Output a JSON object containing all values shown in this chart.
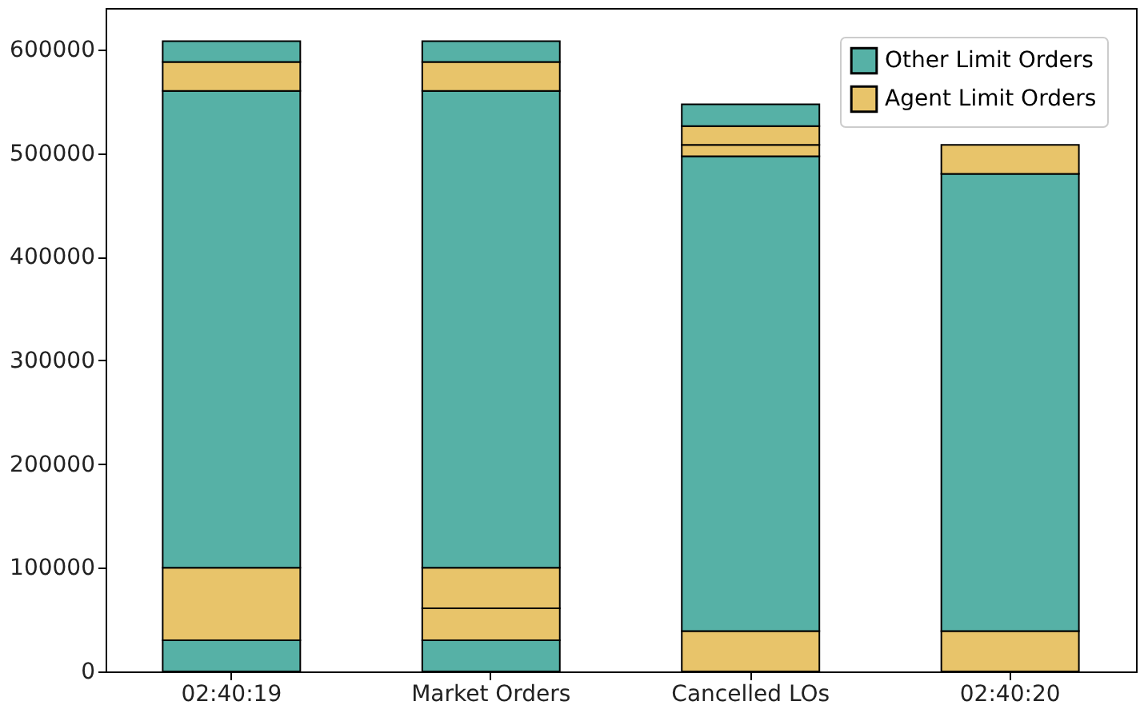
{
  "chart_data": {
    "type": "bar",
    "stacked": true,
    "categories": [
      "02:40:19",
      "Market Orders",
      "Cancelled LOs",
      "02:40:20"
    ],
    "series": [
      {
        "color": "#56b1a6",
        "values": [
          30000,
          30000,
          null,
          null
        ]
      },
      {
        "name": "Agent Limit Orders",
        "color": "#e8c46a",
        "values": [
          70000,
          31000,
          39000,
          39000
        ]
      },
      {
        "color": "#e8c46a",
        "values": [
          null,
          39000,
          null,
          null
        ]
      },
      {
        "name": "Other Limit Orders",
        "color": "#56b1a6",
        "values": [
          460000,
          460000,
          458000,
          441000
        ]
      },
      {
        "color": "#e8c46a",
        "values": [
          28000,
          28000,
          11000,
          28000
        ]
      },
      {
        "color": "#e8c46a",
        "values": [
          null,
          null,
          18000,
          null
        ]
      },
      {
        "color": "#56b1a6",
        "values": [
          20000,
          20000,
          21000,
          null
        ]
      }
    ],
    "ylim": [
      0,
      640000
    ],
    "yticks": [
      0,
      100000,
      200000,
      300000,
      400000,
      500000,
      600000
    ],
    "grid": false,
    "legend": "top right"
  }
}
